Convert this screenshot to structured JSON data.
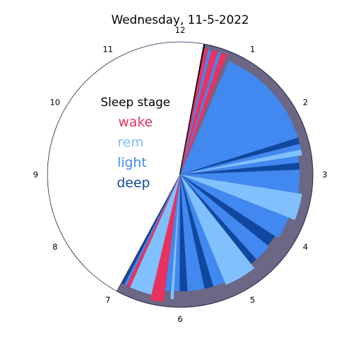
{
  "chart_data": {
    "type": "polar-bar",
    "title": "Wednesday, 11-5-2022",
    "hour_labels": [
      "12",
      "1",
      "2",
      "3",
      "4",
      "5",
      "6",
      "7",
      "8",
      "9",
      "10",
      "11"
    ],
    "legend": {
      "title": "Sleep stage",
      "entries": [
        {
          "stage": "wake",
          "label": "wake",
          "color": "#e8325f"
        },
        {
          "stage": "rem",
          "label": "rem",
          "color": "#80c0ff"
        },
        {
          "stage": "light",
          "label": "light",
          "color": "#4188f0"
        },
        {
          "stage": "deep",
          "label": "deep",
          "color": "#1048a0"
        }
      ]
    },
    "colors": {
      "background_fill": "#6b6785",
      "background_edge": "#22204a",
      "background_start_line": "#111111"
    },
    "radius_max": 1.0,
    "sleep_window": {
      "start_hour": 0.35,
      "end_hour": 6.95
    },
    "segments": [
      {
        "stage": "wake",
        "start_hour": 0.36,
        "end_hour": 0.42,
        "radius": 0.97
      },
      {
        "stage": "light",
        "start_hour": 0.42,
        "end_hour": 0.47,
        "radius": 0.97
      },
      {
        "stage": "wake",
        "start_hour": 0.47,
        "end_hour": 0.57,
        "radius": 0.97
      },
      {
        "stage": "light",
        "start_hour": 0.57,
        "end_hour": 0.62,
        "radius": 0.97
      },
      {
        "stage": "wake",
        "start_hour": 0.62,
        "end_hour": 0.71,
        "radius": 0.97
      },
      {
        "stage": "light",
        "start_hour": 0.77,
        "end_hour": 2.42,
        "radius": 0.93
      },
      {
        "stage": "deep",
        "start_hour": 2.42,
        "end_hour": 2.52,
        "radius": 0.93
      },
      {
        "stage": "light",
        "start_hour": 2.52,
        "end_hour": 2.61,
        "radius": 0.93
      },
      {
        "stage": "rem",
        "start_hour": 2.61,
        "end_hour": 2.7,
        "radius": 0.93
      },
      {
        "stage": "light",
        "start_hour": 2.7,
        "end_hour": 2.81,
        "radius": 0.9
      },
      {
        "stage": "deep",
        "start_hour": 2.81,
        "end_hour": 2.92,
        "radius": 0.9
      },
      {
        "stage": "light",
        "start_hour": 2.92,
        "end_hour": 3.3,
        "radius": 0.9
      },
      {
        "stage": "rem",
        "start_hour": 3.3,
        "end_hour": 3.72,
        "radius": 0.93
      },
      {
        "stage": "light",
        "start_hour": 3.72,
        "end_hour": 4.1,
        "radius": 0.88
      },
      {
        "stage": "deep",
        "start_hour": 4.1,
        "end_hour": 4.3,
        "radius": 0.85
      },
      {
        "stage": "light",
        "start_hour": 4.3,
        "end_hour": 4.6,
        "radius": 0.86
      },
      {
        "stage": "deep",
        "start_hour": 4.6,
        "end_hour": 4.72,
        "radius": 0.86
      },
      {
        "stage": "rem",
        "start_hour": 4.72,
        "end_hour": 5.25,
        "radius": 0.9
      },
      {
        "stage": "light",
        "start_hour": 5.25,
        "end_hour": 5.45,
        "radius": 0.88
      },
      {
        "stage": "deep",
        "start_hour": 5.45,
        "end_hour": 5.6,
        "radius": 0.88
      },
      {
        "stage": "light",
        "start_hour": 5.6,
        "end_hour": 5.88,
        "radius": 0.88
      },
      {
        "stage": "deep",
        "start_hour": 5.88,
        "end_hour": 6.01,
        "radius": 0.88
      },
      {
        "stage": "light",
        "start_hour": 6.01,
        "end_hour": 6.1,
        "radius": 0.88
      },
      {
        "stage": "rem",
        "start_hour": 6.1,
        "end_hour": 6.15,
        "radius": 0.94
      },
      {
        "stage": "light",
        "start_hour": 6.15,
        "end_hour": 6.25,
        "radius": 0.88
      },
      {
        "stage": "wake",
        "start_hour": 6.25,
        "end_hour": 6.45,
        "radius": 0.97
      },
      {
        "stage": "rem",
        "start_hour": 6.45,
        "end_hour": 6.8,
        "radius": 0.93
      },
      {
        "stage": "wake",
        "start_hour": 6.8,
        "end_hour": 6.86,
        "radius": 0.93
      },
      {
        "stage": "light",
        "start_hour": 6.86,
        "end_hour": 6.9,
        "radius": 0.93
      },
      {
        "stage": "deep",
        "start_hour": 6.9,
        "end_hour": 6.94,
        "radius": 0.93
      }
    ]
  }
}
